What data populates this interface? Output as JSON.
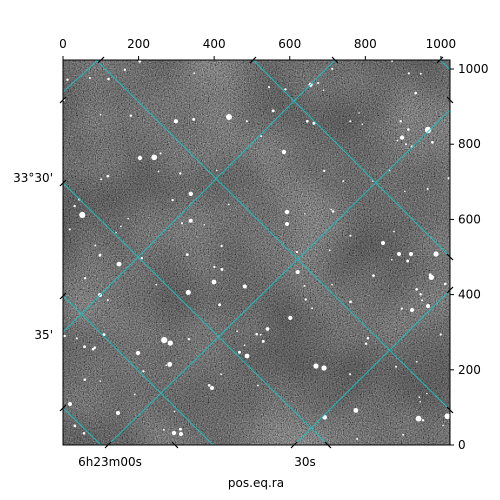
{
  "chart_data": {
    "type": "image",
    "title": "",
    "xlabel": "pos.eq.ra",
    "ylabel": "",
    "pixel_axes": {
      "x_ticks": [
        0,
        200,
        400,
        600,
        800,
        1000
      ],
      "y_ticks": [
        0,
        200,
        400,
        600,
        800,
        1000
      ],
      "xlim": [
        0,
        1024
      ],
      "ylim": [
        0,
        1024
      ],
      "x_tick_labels": [
        "0",
        "200",
        "400",
        "600",
        "800",
        "1000"
      ],
      "y_tick_labels": [
        "0",
        "200",
        "400",
        "600",
        "800",
        "1000"
      ]
    },
    "world_axes": {
      "ra_tick_labels": [
        "6h23m00s",
        "30s"
      ],
      "dec_tick_labels": [
        "33°30'",
        "35'"
      ]
    },
    "grid": true,
    "colors": {
      "grid": "#19c3c3",
      "image_base": "#6e6e6e",
      "stars": "#ffffff"
    }
  }
}
